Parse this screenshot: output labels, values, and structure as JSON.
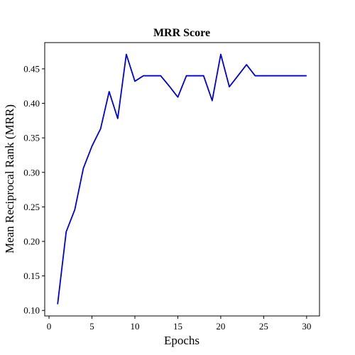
{
  "chart_data": {
    "type": "line",
    "title": "MRR Score",
    "xlabel": "Epochs",
    "ylabel": "Mean Reciprocal Rank (MRR)",
    "xlim": [
      -0.5,
      31.5
    ],
    "ylim": [
      0.092,
      0.488
    ],
    "xticks": [
      0,
      5,
      10,
      15,
      20,
      25,
      30
    ],
    "yticks": [
      0.1,
      0.15,
      0.2,
      0.25,
      0.3,
      0.35,
      0.4,
      0.45
    ],
    "ytick_labels": [
      "0.10",
      "0.15",
      "0.20",
      "0.25",
      "0.30",
      "0.35",
      "0.40",
      "0.45"
    ],
    "grid": false,
    "series": [
      {
        "color": "#0000dd",
        "x": [
          1,
          2,
          3,
          4,
          5,
          6,
          7,
          8,
          9,
          10,
          11,
          12,
          13,
          14,
          15,
          16,
          17,
          18,
          19,
          20,
          21,
          22,
          23,
          24,
          25,
          26,
          27,
          28,
          29,
          30
        ],
        "y": [
          0.109,
          0.214,
          0.246,
          0.306,
          0.338,
          0.363,
          0.417,
          0.378,
          0.471,
          0.432,
          0.44,
          0.44,
          0.44,
          0.425,
          0.409,
          0.44,
          0.44,
          0.44,
          0.404,
          0.471,
          0.424,
          0.44,
          0.456,
          0.44,
          0.44,
          0.44,
          0.44,
          0.44,
          0.44,
          0.44
        ]
      }
    ]
  }
}
